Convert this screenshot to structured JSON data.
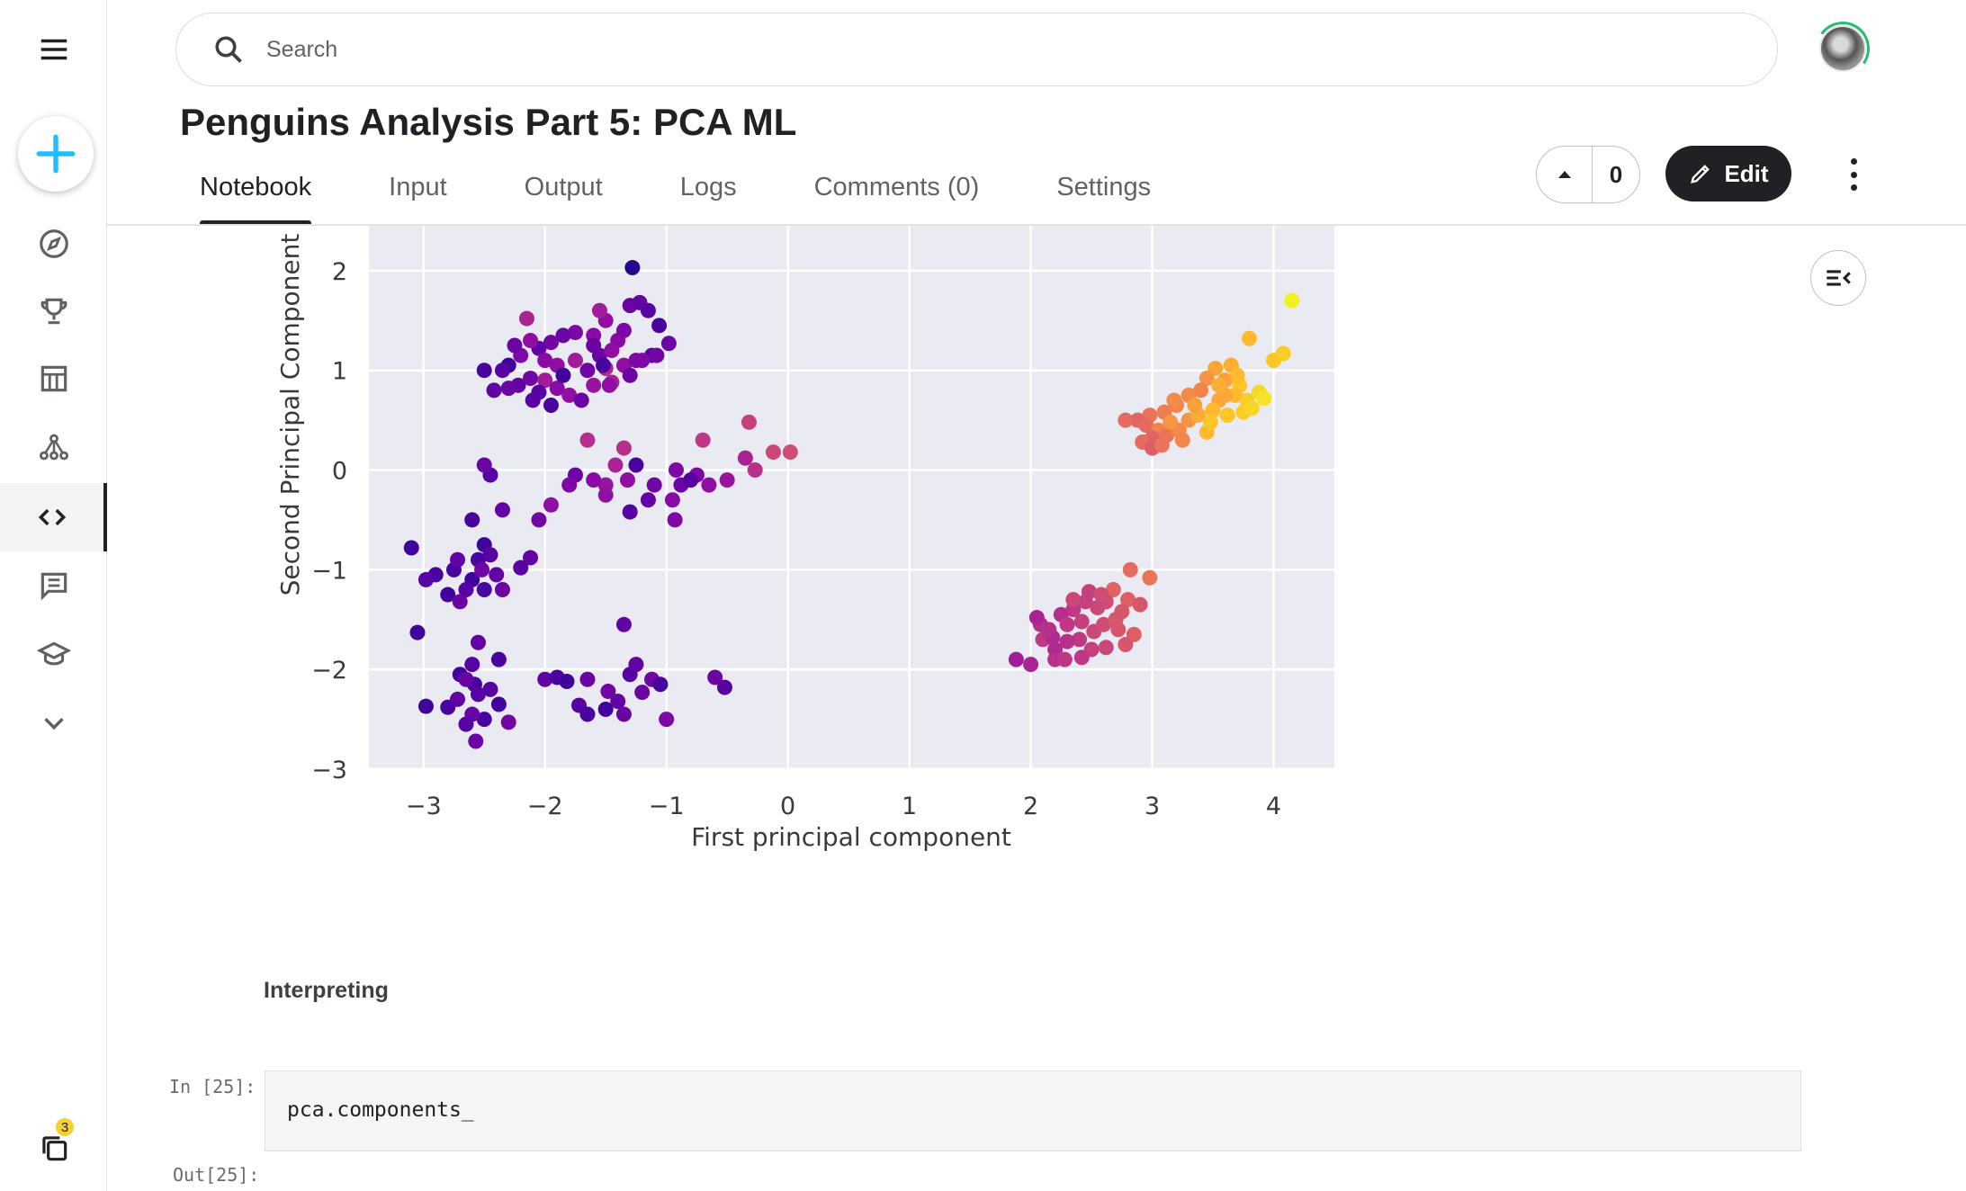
{
  "search": {
    "placeholder": "Search"
  },
  "notebook": {
    "title": "Penguins Analysis Part 5: PCA ML"
  },
  "tabs": [
    {
      "label": "Notebook"
    },
    {
      "label": "Input"
    },
    {
      "label": "Output"
    },
    {
      "label": "Logs"
    },
    {
      "label": "Comments (0)"
    },
    {
      "label": "Settings"
    }
  ],
  "votes": {
    "count": "0"
  },
  "edit_label": "Edit",
  "sidebar": {
    "icons": [
      "menu-icon",
      "create-icon",
      "compass-icon",
      "trophy-icon",
      "table-icon",
      "models-icon",
      "code-icon",
      "discussion-icon",
      "learn-icon",
      "chevron-down-icon",
      "collections-icon"
    ],
    "badge_count": "3"
  },
  "colors": {
    "accent_blue": "#20beff",
    "dark": "#202124"
  },
  "cells": {
    "markdown_heading": "Interpreting",
    "in_prompt": "In [25]:",
    "code": "pca.components_",
    "out_prompt": "Out[25]:"
  },
  "chart_data": {
    "type": "scatter",
    "xlabel": "First principal component",
    "ylabel": "Second Principal Component",
    "xlim": [
      -3.45,
      4.5
    ],
    "ylim": [
      -3.0,
      2.45
    ],
    "xticks": [
      "−3",
      "−2",
      "−1",
      "0",
      "1",
      "2",
      "3",
      "4"
    ],
    "yticks": [
      "−3",
      "−2",
      "−1",
      "0",
      "1",
      "2"
    ],
    "grid": true,
    "colormap": "plasma",
    "points": [
      [
        -1.28,
        2.03
      ],
      [
        -1.3,
        1.65
      ],
      [
        -1.22,
        1.68
      ],
      [
        -1.15,
        1.6
      ],
      [
        -1.06,
        1.45
      ],
      [
        -0.98,
        1.27
      ],
      [
        -1.12,
        1.15
      ],
      [
        -1.5,
        1.5
      ],
      [
        -1.6,
        1.35
      ],
      [
        -1.75,
        1.38
      ],
      [
        -1.85,
        1.35
      ],
      [
        -1.95,
        1.28
      ],
      [
        -2.05,
        1.22
      ],
      [
        -2.12,
        1.3
      ],
      [
        -2.2,
        1.15
      ],
      [
        -2.25,
        1.25
      ],
      [
        -2.3,
        1.05
      ],
      [
        -2.35,
        1.0
      ],
      [
        -2.5,
        1.0
      ],
      [
        -2.22,
        0.85
      ],
      [
        -2.12,
        0.92
      ],
      [
        -2.0,
        0.9
      ],
      [
        -1.9,
        0.82
      ],
      [
        -1.8,
        0.75
      ],
      [
        -1.7,
        0.7
      ],
      [
        -1.6,
        0.85
      ],
      [
        -1.45,
        0.88
      ],
      [
        -1.35,
        1.05
      ],
      [
        -1.25,
        1.1
      ],
      [
        -1.4,
        1.3
      ],
      [
        -1.55,
        1.15
      ],
      [
        -1.65,
        1.0
      ],
      [
        -1.75,
        1.1
      ],
      [
        -1.9,
        1.05
      ],
      [
        -2.0,
        1.1
      ],
      [
        -1.5,
        1.02
      ],
      [
        -1.3,
        0.95
      ],
      [
        -1.2,
        1.1
      ],
      [
        -1.45,
        1.2
      ],
      [
        -1.6,
        1.25
      ],
      [
        -1.85,
        0.95
      ],
      [
        -2.05,
        0.78
      ],
      [
        -1.95,
        0.65
      ],
      [
        -2.42,
        0.8
      ],
      [
        -2.3,
        0.82
      ],
      [
        -2.1,
        0.7
      ],
      [
        -1.55,
        1.6
      ],
      [
        -1.08,
        1.15
      ],
      [
        -1.47,
        0.85
      ],
      [
        -1.35,
        1.4
      ],
      [
        -2.15,
        1.52
      ],
      [
        -1.52,
        1.05
      ],
      [
        -1.65,
        0.3
      ],
      [
        -1.35,
        0.22
      ],
      [
        -0.7,
        0.3
      ],
      [
        -0.32,
        0.48
      ],
      [
        -0.12,
        0.18
      ],
      [
        0.02,
        0.18
      ],
      [
        -0.27,
        0.0
      ],
      [
        -0.35,
        0.12
      ],
      [
        -0.5,
        -0.1
      ],
      [
        -0.65,
        -0.15
      ],
      [
        -0.75,
        -0.05
      ],
      [
        -0.88,
        -0.15
      ],
      [
        -0.95,
        -0.3
      ],
      [
        -1.1,
        -0.15
      ],
      [
        -1.15,
        -0.3
      ],
      [
        -0.92,
        0.0
      ],
      [
        -1.32,
        -0.1
      ],
      [
        -1.42,
        0.05
      ],
      [
        -1.5,
        -0.15
      ],
      [
        -1.6,
        -0.1
      ],
      [
        -1.75,
        -0.05
      ],
      [
        -1.8,
        -0.15
      ],
      [
        -1.95,
        -0.35
      ],
      [
        -2.05,
        -0.5
      ],
      [
        -2.35,
        -0.4
      ],
      [
        -2.45,
        -0.05
      ],
      [
        -2.5,
        0.05
      ],
      [
        -2.6,
        -0.5
      ],
      [
        -2.5,
        -0.75
      ],
      [
        -2.55,
        -0.9
      ],
      [
        -2.6,
        -1.1
      ],
      [
        -2.65,
        -1.2
      ],
      [
        -2.75,
        -1.0
      ],
      [
        -2.8,
        -1.25
      ],
      [
        -2.9,
        -1.05
      ],
      [
        -2.98,
        -1.1
      ],
      [
        -3.1,
        -0.78
      ],
      [
        -2.4,
        -1.05
      ],
      [
        -2.35,
        -1.2
      ],
      [
        -2.2,
        -0.98
      ],
      [
        -2.12,
        -0.88
      ],
      [
        -2.5,
        -1.2
      ],
      [
        -2.7,
        -1.32
      ],
      [
        -2.52,
        -1.0
      ],
      [
        -2.45,
        -0.85
      ],
      [
        -2.72,
        -0.9
      ],
      [
        -1.3,
        -0.42
      ],
      [
        -0.93,
        -0.5
      ],
      [
        -1.5,
        -0.25
      ],
      [
        -1.25,
        0.05
      ],
      [
        -0.8,
        -0.1
      ],
      [
        -3.05,
        -1.63
      ],
      [
        -2.55,
        -1.73
      ],
      [
        -2.38,
        -1.9
      ],
      [
        -2.6,
        -1.95
      ],
      [
        -2.7,
        -2.05
      ],
      [
        -2.58,
        -2.15
      ],
      [
        -2.45,
        -2.2
      ],
      [
        -2.38,
        -2.35
      ],
      [
        -2.5,
        -2.5
      ],
      [
        -2.6,
        -2.45
      ],
      [
        -2.55,
        -2.25
      ],
      [
        -2.72,
        -2.3
      ],
      [
        -2.8,
        -2.38
      ],
      [
        -2.98,
        -2.37
      ],
      [
        -2.65,
        -2.55
      ],
      [
        -2.57,
        -2.72
      ],
      [
        -2.3,
        -2.53
      ],
      [
        -2.0,
        -2.1
      ],
      [
        -1.9,
        -2.08
      ],
      [
        -1.82,
        -2.12
      ],
      [
        -1.72,
        -2.36
      ],
      [
        -1.65,
        -2.45
      ],
      [
        -1.5,
        -2.4
      ],
      [
        -1.4,
        -2.32
      ],
      [
        -1.35,
        -2.45
      ],
      [
        -1.48,
        -2.22
      ],
      [
        -1.3,
        -2.05
      ],
      [
        -1.25,
        -1.95
      ],
      [
        -1.12,
        -2.1
      ],
      [
        -1.05,
        -2.15
      ],
      [
        -1.2,
        -2.23
      ],
      [
        -1.0,
        -2.5
      ],
      [
        -0.6,
        -2.08
      ],
      [
        -0.52,
        -2.18
      ],
      [
        -1.35,
        -1.55
      ],
      [
        -1.65,
        -2.1
      ],
      [
        -2.65,
        -2.1
      ]
    ],
    "point_shades": [
      0.05,
      0.2,
      0.18,
      0.15,
      0.12,
      0.2,
      0.15,
      0.3,
      0.28,
      0.25,
      0.2,
      0.22,
      0.18,
      0.3,
      0.25,
      0.2,
      0.1,
      0.15,
      0.12,
      0.18,
      0.22,
      0.35,
      0.28,
      0.3,
      0.2,
      0.32,
      0.38,
      0.3,
      0.25,
      0.28,
      0.2,
      0.22,
      0.35,
      0.3,
      0.28,
      0.4,
      0.2,
      0.25,
      0.3,
      0.2,
      0.1,
      0.15,
      0.12,
      0.18,
      0.2,
      0.15,
      0.35,
      0.22,
      0.3,
      0.25,
      0.38,
      0.12,
      0.42,
      0.42,
      0.45,
      0.48,
      0.5,
      0.52,
      0.42,
      0.38,
      0.32,
      0.3,
      0.25,
      0.2,
      0.28,
      0.22,
      0.18,
      0.25,
      0.3,
      0.38,
      0.32,
      0.28,
      0.2,
      0.25,
      0.3,
      0.22,
      0.18,
      0.15,
      0.2,
      0.12,
      0.1,
      0.12,
      0.1,
      0.15,
      0.12,
      0.1,
      0.12,
      0.15,
      0.1,
      0.18,
      0.2,
      0.15,
      0.18,
      0.12,
      0.2,
      0.22,
      0.15,
      0.18,
      0.15,
      0.25,
      0.3,
      0.12,
      0.15,
      0.1,
      0.18,
      0.12,
      0.15,
      0.1,
      0.12,
      0.15,
      0.1,
      0.12,
      0.2,
      0.15,
      0.18,
      0.12,
      0.1,
      0.15,
      0.2,
      0.22,
      0.18,
      0.12,
      0.1,
      0.15,
      0.12,
      0.1,
      0.18,
      0.2,
      0.22,
      0.15,
      0.18,
      0.22,
      0.12,
      0.2,
      0.25,
      0.2,
      0.15,
      0.18
    ],
    "cluster_points": [
      [
        4.15,
        1.7
      ],
      [
        3.8,
        1.32
      ],
      [
        4.08,
        1.17
      ],
      [
        4.0,
        1.1
      ],
      [
        3.65,
        1.05
      ],
      [
        3.52,
        1.02
      ],
      [
        3.45,
        0.92
      ],
      [
        3.6,
        0.9
      ],
      [
        3.72,
        0.85
      ],
      [
        3.88,
        0.78
      ],
      [
        3.92,
        0.72
      ],
      [
        3.78,
        0.7
      ],
      [
        3.68,
        0.75
      ],
      [
        3.55,
        0.7
      ],
      [
        3.4,
        0.8
      ],
      [
        3.3,
        0.75
      ],
      [
        3.2,
        0.65
      ],
      [
        3.1,
        0.58
      ],
      [
        2.98,
        0.55
      ],
      [
        2.88,
        0.5
      ],
      [
        2.95,
        0.45
      ],
      [
        3.05,
        0.4
      ],
      [
        3.12,
        0.35
      ],
      [
        3.0,
        0.32
      ],
      [
        2.92,
        0.28
      ],
      [
        3.0,
        0.22
      ],
      [
        3.08,
        0.25
      ],
      [
        3.22,
        0.4
      ],
      [
        3.3,
        0.5
      ],
      [
        3.38,
        0.55
      ],
      [
        3.5,
        0.6
      ],
      [
        3.62,
        0.55
      ],
      [
        3.75,
        0.58
      ],
      [
        3.82,
        0.62
      ],
      [
        3.45,
        0.38
      ],
      [
        3.25,
        0.3
      ],
      [
        3.6,
        0.75
      ],
      [
        3.7,
        0.95
      ],
      [
        3.15,
        0.48
      ],
      [
        2.78,
        0.5
      ],
      [
        3.35,
        0.65
      ],
      [
        3.48,
        0.48
      ],
      [
        3.18,
        0.7
      ],
      [
        3.55,
        0.85
      ],
      [
        2.98,
        -1.08
      ],
      [
        2.82,
        -1.0
      ],
      [
        2.68,
        -1.2
      ],
      [
        2.8,
        -1.3
      ],
      [
        2.9,
        -1.35
      ],
      [
        2.75,
        -1.42
      ],
      [
        2.62,
        -1.32
      ],
      [
        2.55,
        -1.38
      ],
      [
        2.45,
        -1.32
      ],
      [
        2.35,
        -1.4
      ],
      [
        2.25,
        -1.45
      ],
      [
        2.3,
        -1.55
      ],
      [
        2.42,
        -1.52
      ],
      [
        2.52,
        -1.62
      ],
      [
        2.6,
        -1.55
      ],
      [
        2.72,
        -1.6
      ],
      [
        2.85,
        -1.65
      ],
      [
        2.78,
        -1.75
      ],
      [
        2.62,
        -1.78
      ],
      [
        2.5,
        -1.8
      ],
      [
        2.4,
        -1.7
      ],
      [
        2.3,
        -1.72
      ],
      [
        2.2,
        -1.8
      ],
      [
        2.1,
        -1.7
      ],
      [
        2.08,
        -1.55
      ],
      [
        2.05,
        -1.48
      ],
      [
        2.18,
        -1.68
      ],
      [
        2.2,
        -1.9
      ],
      [
        2.28,
        -1.9
      ],
      [
        2.0,
        -1.95
      ],
      [
        1.88,
        -1.9
      ],
      [
        2.35,
        -1.3
      ],
      [
        2.48,
        -1.22
      ],
      [
        2.58,
        -1.25
      ],
      [
        2.7,
        -1.5
      ],
      [
        2.42,
        -1.88
      ],
      [
        2.15,
        -1.6
      ]
    ],
    "cluster_shades": [
      0.98,
      0.85,
      0.9,
      0.88,
      0.82,
      0.8,
      0.75,
      0.78,
      0.88,
      0.92,
      0.95,
      0.9,
      0.85,
      0.8,
      0.7,
      0.72,
      0.7,
      0.68,
      0.65,
      0.6,
      0.62,
      0.7,
      0.65,
      0.6,
      0.62,
      0.58,
      0.65,
      0.72,
      0.75,
      0.82,
      0.85,
      0.88,
      0.9,
      0.92,
      0.85,
      0.7,
      0.8,
      0.85,
      0.75,
      0.62,
      0.78,
      0.88,
      0.72,
      0.82,
      0.65,
      0.62,
      0.6,
      0.58,
      0.55,
      0.55,
      0.52,
      0.5,
      0.48,
      0.45,
      0.42,
      0.45,
      0.48,
      0.5,
      0.52,
      0.55,
      0.58,
      0.55,
      0.5,
      0.48,
      0.45,
      0.42,
      0.4,
      0.45,
      0.42,
      0.38,
      0.4,
      0.42,
      0.45,
      0.38,
      0.35,
      0.5,
      0.48,
      0.52,
      0.55,
      0.45,
      0.42
    ]
  }
}
